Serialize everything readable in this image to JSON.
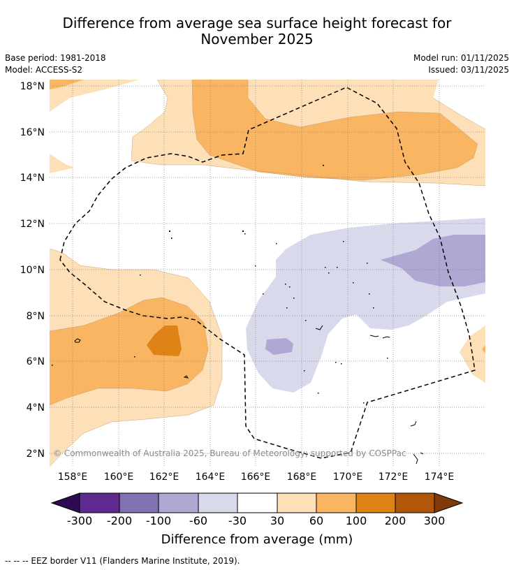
{
  "title_line1": "Difference from average sea surface height forecast for",
  "title_line2": "November 2025",
  "meta": {
    "base_period": "Base period: 1981-2018",
    "model": "Model: ACCESS-S2",
    "model_run": "Model run: 01/11/2025",
    "issued": "Issued: 03/11/2025"
  },
  "map": {
    "lat_labels": [
      "18°N",
      "16°N",
      "14°N",
      "12°N",
      "10°N",
      "8°N",
      "6°N",
      "4°N",
      "2°N"
    ],
    "lon_labels": [
      "158°E",
      "160°E",
      "162°E",
      "164°E",
      "166°E",
      "168°E",
      "170°E",
      "172°E",
      "174°E"
    ],
    "copyright": "© Commonwealth of Australia 2025, Bureau of Meteorology; supported by COSPPac"
  },
  "colorbar": {
    "ticks": [
      "-300",
      "-200",
      "-100",
      "-60",
      "-30",
      "30",
      "60",
      "100",
      "200",
      "300"
    ],
    "label": "Difference from average (mm)",
    "colors": [
      "#2d0a52",
      "#5e2a90",
      "#8270b0",
      "#aea8d2",
      "#d9d9ec",
      "#ffffff",
      "#fde0b8",
      "#fab562",
      "#e08317",
      "#b25609",
      "#7f3b08"
    ]
  },
  "footnote": "--  --  -- EEZ border V11 (Flanders Marine Institute, 2019)."
}
